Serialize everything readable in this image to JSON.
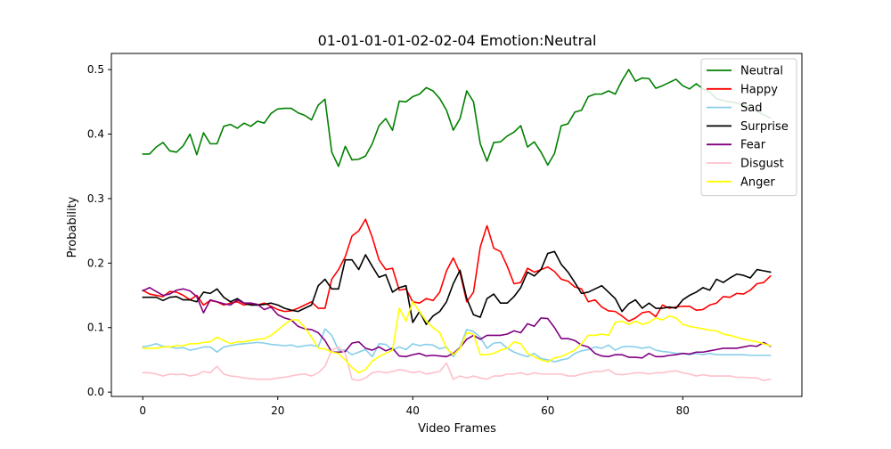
{
  "chart_data": {
    "type": "line",
    "title": "01-01-01-01-02-02-04 Emotion:Neutral",
    "xlabel": "Video Frames",
    "ylabel": "Probability",
    "xlim": [
      -4.65,
      97.65
    ],
    "ylim": [
      -0.0067,
      0.525
    ],
    "xticks": [
      0,
      20,
      40,
      60,
      80
    ],
    "yticks": [
      0.0,
      0.1,
      0.2,
      0.3,
      0.4,
      0.5
    ],
    "ytick_labels": [
      "0.0",
      "0.1",
      "0.2",
      "0.3",
      "0.4",
      "0.5"
    ],
    "grid": false,
    "legend_position": "top-right",
    "x": [
      0,
      1,
      2,
      3,
      4,
      5,
      6,
      7,
      8,
      9,
      10,
      11,
      12,
      13,
      14,
      15,
      16,
      17,
      18,
      19,
      20,
      21,
      22,
      23,
      24,
      25,
      26,
      27,
      28,
      29,
      30,
      31,
      32,
      33,
      34,
      35,
      36,
      37,
      38,
      39,
      40,
      41,
      42,
      43,
      44,
      45,
      46,
      47,
      48,
      49,
      50,
      51,
      52,
      53,
      54,
      55,
      56,
      57,
      58,
      59,
      60,
      61,
      62,
      63,
      64,
      65,
      66,
      67,
      68,
      69,
      70,
      71,
      72,
      73,
      74,
      75,
      76,
      77,
      78,
      79,
      80,
      81,
      82,
      83,
      84,
      85,
      86,
      87,
      88,
      89,
      90,
      91,
      92,
      93
    ],
    "series": [
      {
        "name": "Neutral",
        "color": "#008000",
        "values": [
          0.369,
          0.369,
          0.38,
          0.387,
          0.374,
          0.372,
          0.382,
          0.4,
          0.368,
          0.402,
          0.385,
          0.385,
          0.412,
          0.415,
          0.409,
          0.417,
          0.412,
          0.42,
          0.417,
          0.432,
          0.439,
          0.44,
          0.44,
          0.433,
          0.429,
          0.422,
          0.445,
          0.454,
          0.372,
          0.35,
          0.381,
          0.36,
          0.361,
          0.366,
          0.385,
          0.413,
          0.424,
          0.406,
          0.451,
          0.45,
          0.458,
          0.462,
          0.472,
          0.467,
          0.455,
          0.437,
          0.406,
          0.424,
          0.467,
          0.45,
          0.385,
          0.358,
          0.387,
          0.388,
          0.397,
          0.403,
          0.413,
          0.38,
          0.388,
          0.372,
          0.352,
          0.37,
          0.413,
          0.416,
          0.434,
          0.437,
          0.458,
          0.462,
          0.462,
          0.467,
          0.462,
          0.483,
          0.5,
          0.482,
          0.487,
          0.486,
          0.471,
          0.475,
          0.48,
          0.485,
          0.475,
          0.47,
          0.478,
          0.47,
          0.465,
          0.455,
          0.452,
          0.45,
          0.448,
          0.445,
          0.44,
          0.435,
          0.43,
          0.425
        ]
      },
      {
        "name": "Happy",
        "color": "#ff0000",
        "values": [
          0.158,
          0.152,
          0.15,
          0.148,
          0.156,
          0.155,
          0.15,
          0.143,
          0.15,
          0.135,
          0.142,
          0.14,
          0.135,
          0.138,
          0.14,
          0.135,
          0.137,
          0.135,
          0.138,
          0.133,
          0.128,
          0.125,
          0.126,
          0.13,
          0.135,
          0.14,
          0.13,
          0.13,
          0.175,
          0.19,
          0.21,
          0.242,
          0.25,
          0.268,
          0.24,
          0.205,
          0.19,
          0.192,
          0.158,
          0.16,
          0.14,
          0.138,
          0.145,
          0.142,
          0.155,
          0.188,
          0.208,
          0.185,
          0.14,
          0.155,
          0.225,
          0.258,
          0.223,
          0.218,
          0.195,
          0.168,
          0.17,
          0.192,
          0.186,
          0.19,
          0.194,
          0.187,
          0.175,
          0.172,
          0.163,
          0.16,
          0.14,
          0.143,
          0.132,
          0.126,
          0.125,
          0.118,
          0.11,
          0.115,
          0.123,
          0.125,
          0.117,
          0.135,
          0.13,
          0.132,
          0.133,
          0.133,
          0.127,
          0.128,
          0.135,
          0.138,
          0.148,
          0.147,
          0.153,
          0.152,
          0.158,
          0.168,
          0.17,
          0.18
        ]
      },
      {
        "name": "Sad",
        "color": "#87ceeb",
        "values": [
          0.07,
          0.072,
          0.075,
          0.071,
          0.07,
          0.068,
          0.069,
          0.065,
          0.067,
          0.07,
          0.07,
          0.062,
          0.07,
          0.072,
          0.074,
          0.075,
          0.076,
          0.077,
          0.076,
          0.074,
          0.073,
          0.072,
          0.073,
          0.07,
          0.072,
          0.073,
          0.07,
          0.098,
          0.088,
          0.065,
          0.065,
          0.058,
          0.062,
          0.066,
          0.055,
          0.075,
          0.074,
          0.065,
          0.07,
          0.066,
          0.075,
          0.072,
          0.074,
          0.073,
          0.067,
          0.07,
          0.055,
          0.07,
          0.097,
          0.094,
          0.085,
          0.068,
          0.076,
          0.077,
          0.068,
          0.062,
          0.058,
          0.055,
          0.06,
          0.052,
          0.05,
          0.047,
          0.05,
          0.052,
          0.06,
          0.064,
          0.066,
          0.07,
          0.068,
          0.073,
          0.065,
          0.07,
          0.071,
          0.07,
          0.068,
          0.07,
          0.065,
          0.063,
          0.062,
          0.06,
          0.06,
          0.058,
          0.06,
          0.058,
          0.06,
          0.058,
          0.058,
          0.058,
          0.058,
          0.058,
          0.057,
          0.057,
          0.057,
          0.057
        ]
      },
      {
        "name": "Surprise",
        "color": "#000000",
        "values": [
          0.147,
          0.147,
          0.147,
          0.142,
          0.147,
          0.148,
          0.143,
          0.143,
          0.14,
          0.155,
          0.153,
          0.16,
          0.147,
          0.14,
          0.145,
          0.138,
          0.135,
          0.135,
          0.136,
          0.138,
          0.135,
          0.13,
          0.127,
          0.125,
          0.13,
          0.135,
          0.165,
          0.175,
          0.16,
          0.16,
          0.205,
          0.205,
          0.19,
          0.213,
          0.195,
          0.178,
          0.182,
          0.155,
          0.162,
          0.165,
          0.108,
          0.125,
          0.105,
          0.118,
          0.125,
          0.14,
          0.168,
          0.189,
          0.145,
          0.12,
          0.116,
          0.145,
          0.152,
          0.138,
          0.138,
          0.148,
          0.162,
          0.186,
          0.18,
          0.19,
          0.215,
          0.218,
          0.198,
          0.186,
          0.17,
          0.153,
          0.155,
          0.16,
          0.165,
          0.155,
          0.145,
          0.125,
          0.137,
          0.143,
          0.13,
          0.138,
          0.13,
          0.13,
          0.132,
          0.13,
          0.143,
          0.15,
          0.155,
          0.162,
          0.158,
          0.175,
          0.17,
          0.177,
          0.183,
          0.181,
          0.177,
          0.19,
          0.188,
          0.186
        ]
      },
      {
        "name": "Fear",
        "color": "#800080",
        "values": [
          0.157,
          0.162,
          0.156,
          0.15,
          0.152,
          0.158,
          0.16,
          0.157,
          0.148,
          0.123,
          0.143,
          0.14,
          0.137,
          0.135,
          0.143,
          0.138,
          0.138,
          0.136,
          0.128,
          0.132,
          0.12,
          0.115,
          0.112,
          0.102,
          0.098,
          0.097,
          0.092,
          0.08,
          0.062,
          0.062,
          0.063,
          0.076,
          0.078,
          0.068,
          0.065,
          0.07,
          0.064,
          0.068,
          0.056,
          0.055,
          0.058,
          0.06,
          0.056,
          0.057,
          0.056,
          0.055,
          0.06,
          0.069,
          0.082,
          0.088,
          0.082,
          0.088,
          0.088,
          0.088,
          0.09,
          0.095,
          0.092,
          0.106,
          0.102,
          0.115,
          0.114,
          0.1,
          0.083,
          0.083,
          0.08,
          0.073,
          0.07,
          0.06,
          0.056,
          0.055,
          0.058,
          0.058,
          0.054,
          0.054,
          0.053,
          0.06,
          0.055,
          0.055,
          0.057,
          0.058,
          0.06,
          0.059,
          0.062,
          0.062,
          0.064,
          0.066,
          0.068,
          0.068,
          0.068,
          0.07,
          0.072,
          0.071,
          0.077,
          0.071
        ]
      },
      {
        "name": "Disgust",
        "color": "#ffc0cb",
        "values": [
          0.03,
          0.03,
          0.028,
          0.025,
          0.028,
          0.027,
          0.028,
          0.025,
          0.027,
          0.032,
          0.03,
          0.04,
          0.028,
          0.025,
          0.024,
          0.022,
          0.021,
          0.02,
          0.02,
          0.02,
          0.022,
          0.023,
          0.025,
          0.027,
          0.028,
          0.025,
          0.03,
          0.04,
          0.065,
          0.07,
          0.06,
          0.02,
          0.018,
          0.022,
          0.03,
          0.032,
          0.03,
          0.032,
          0.035,
          0.033,
          0.03,
          0.032,
          0.028,
          0.03,
          0.032,
          0.045,
          0.02,
          0.025,
          0.022,
          0.025,
          0.022,
          0.02,
          0.025,
          0.025,
          0.028,
          0.028,
          0.03,
          0.027,
          0.03,
          0.028,
          0.028,
          0.028,
          0.028,
          0.025,
          0.025,
          0.028,
          0.03,
          0.032,
          0.032,
          0.035,
          0.028,
          0.027,
          0.028,
          0.03,
          0.03,
          0.028,
          0.03,
          0.03,
          0.032,
          0.033,
          0.03,
          0.028,
          0.025,
          0.027,
          0.025,
          0.025,
          0.025,
          0.025,
          0.023,
          0.023,
          0.022,
          0.022,
          0.018,
          0.02
        ]
      },
      {
        "name": "Anger",
        "color": "#ffff00",
        "values": [
          0.068,
          0.068,
          0.068,
          0.07,
          0.07,
          0.072,
          0.072,
          0.075,
          0.075,
          0.077,
          0.078,
          0.085,
          0.08,
          0.075,
          0.078,
          0.078,
          0.08,
          0.082,
          0.083,
          0.088,
          0.096,
          0.105,
          0.112,
          0.112,
          0.1,
          0.085,
          0.068,
          0.067,
          0.062,
          0.06,
          0.05,
          0.038,
          0.03,
          0.035,
          0.048,
          0.055,
          0.06,
          0.065,
          0.13,
          0.11,
          0.14,
          0.125,
          0.11,
          0.1,
          0.092,
          0.068,
          0.058,
          0.068,
          0.092,
          0.09,
          0.058,
          0.058,
          0.06,
          0.065,
          0.068,
          0.078,
          0.075,
          0.06,
          0.055,
          0.05,
          0.047,
          0.053,
          0.055,
          0.06,
          0.065,
          0.075,
          0.088,
          0.088,
          0.09,
          0.088,
          0.108,
          0.11,
          0.105,
          0.11,
          0.105,
          0.108,
          0.115,
          0.112,
          0.118,
          0.115,
          0.105,
          0.102,
          0.1,
          0.098,
          0.096,
          0.095,
          0.09,
          0.088,
          0.085,
          0.082,
          0.08,
          0.078,
          0.075,
          0.072
        ]
      }
    ]
  }
}
